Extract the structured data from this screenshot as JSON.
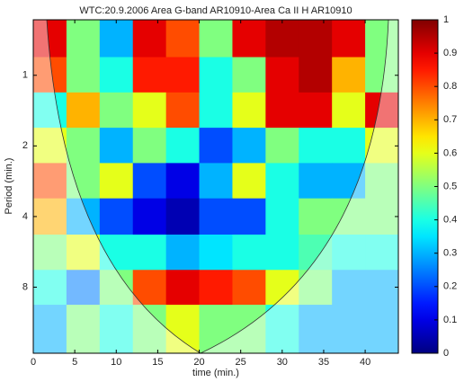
{
  "chart_data": {
    "type": "heatmap",
    "title": "WTC:20.9.2006 Area G-band AR10910-Area Ca II H AR10910",
    "x_label": "time (min.)",
    "y_label": "Period (min.)",
    "x": [
      2,
      6,
      10,
      14,
      18,
      22,
      26,
      30,
      34,
      38,
      42
    ],
    "y": [
      0.7,
      1,
      1.4,
      2,
      2.8,
      4,
      5.7,
      8,
      11.3
    ],
    "z": [
      [
        0.9,
        0.5,
        0.3,
        0.9,
        0.8,
        0.5,
        0.9,
        0.95,
        0.95,
        0.9,
        0.5
      ],
      [
        0.8,
        0.5,
        0.4,
        0.85,
        0.85,
        0.4,
        0.5,
        0.9,
        0.95,
        0.7,
        0.5
      ],
      [
        0.4,
        0.7,
        0.5,
        0.6,
        0.8,
        0.4,
        0.6,
        0.9,
        0.9,
        0.6,
        0.9
      ],
      [
        0.6,
        0.5,
        0.3,
        0.5,
        0.4,
        0.2,
        0.3,
        0.5,
        0.4,
        0.4,
        0.6
      ],
      [
        0.8,
        0.5,
        0.6,
        0.2,
        0.1,
        0.3,
        0.6,
        0.4,
        0.3,
        0.3,
        0.5
      ],
      [
        0.7,
        0.3,
        0.2,
        0.1,
        0.05,
        0.2,
        0.2,
        0.4,
        0.5,
        0.5,
        0.5
      ],
      [
        0.5,
        0.6,
        0.4,
        0.4,
        0.3,
        0.35,
        0.4,
        0.4,
        0.45,
        0.4,
        0.4
      ],
      [
        0.4,
        0.25,
        0.5,
        0.8,
        0.9,
        0.85,
        0.8,
        0.6,
        0.5,
        0.3,
        0.3
      ],
      [
        0.3,
        0.5,
        0.4,
        0.5,
        0.6,
        0.5,
        0.5,
        0.4,
        0.3,
        0.3,
        0.3
      ]
    ],
    "xlim": [
      0,
      44
    ],
    "xticks": [
      0,
      5,
      10,
      15,
      20,
      25,
      30,
      35,
      40
    ],
    "ylim": [
      0.58,
      15.3
    ],
    "yticks": [
      1,
      2,
      4,
      8
    ],
    "y_log": true,
    "y_reversed": true,
    "colormap": "jet",
    "clim": [
      0,
      1
    ],
    "cticks": [
      0,
      0.1,
      0.2,
      0.3,
      0.4,
      0.5,
      0.6,
      0.7,
      0.8,
      0.9,
      1
    ]
  }
}
